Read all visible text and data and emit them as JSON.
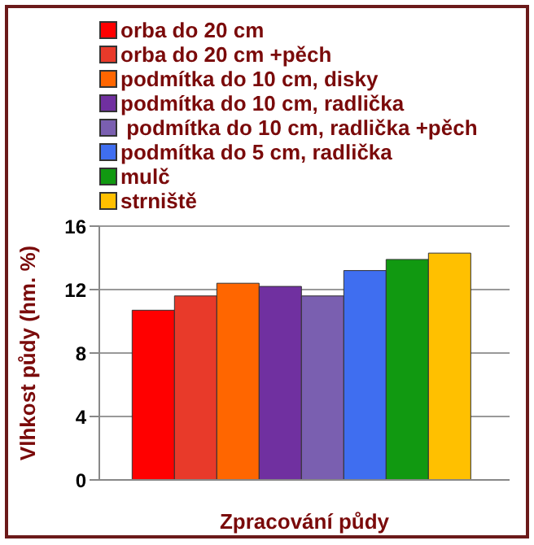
{
  "chart_data": {
    "type": "bar",
    "xlabel": "Zpracování půdy",
    "ylabel": "Vlhkost půdy (hm. %)",
    "categories": [
      null
    ],
    "series": [
      {
        "name": "orba do 20 cm",
        "color": "#ff0000",
        "values": [
          10.7
        ]
      },
      {
        "name": "orba do 20 cm +pěch",
        "color": "#e83a2a",
        "values": [
          11.6
        ]
      },
      {
        "name": "podmítka do 10 cm, disky",
        "color": "#ff6600",
        "values": [
          12.4
        ]
      },
      {
        "name": "podmítka do 10 cm, radlička",
        "color": "#7030a0",
        "values": [
          12.2
        ]
      },
      {
        "name": " podmítka do 10 cm, radlička +pěch",
        "color": "#7a5fb0",
        "values": [
          11.6
        ]
      },
      {
        "name": "podmítka do 5 cm, radlička",
        "color": "#3f6ef0",
        "values": [
          13.2
        ]
      },
      {
        "name": "mulč",
        "color": "#119911",
        "values": [
          13.9
        ]
      },
      {
        "name": "strniště",
        "color": "#ffc000",
        "values": [
          14.3
        ]
      }
    ],
    "ylim": [
      0,
      16
    ],
    "yticks": [
      0,
      4,
      8,
      12,
      16
    ],
    "grid": "y",
    "legend": "top"
  }
}
